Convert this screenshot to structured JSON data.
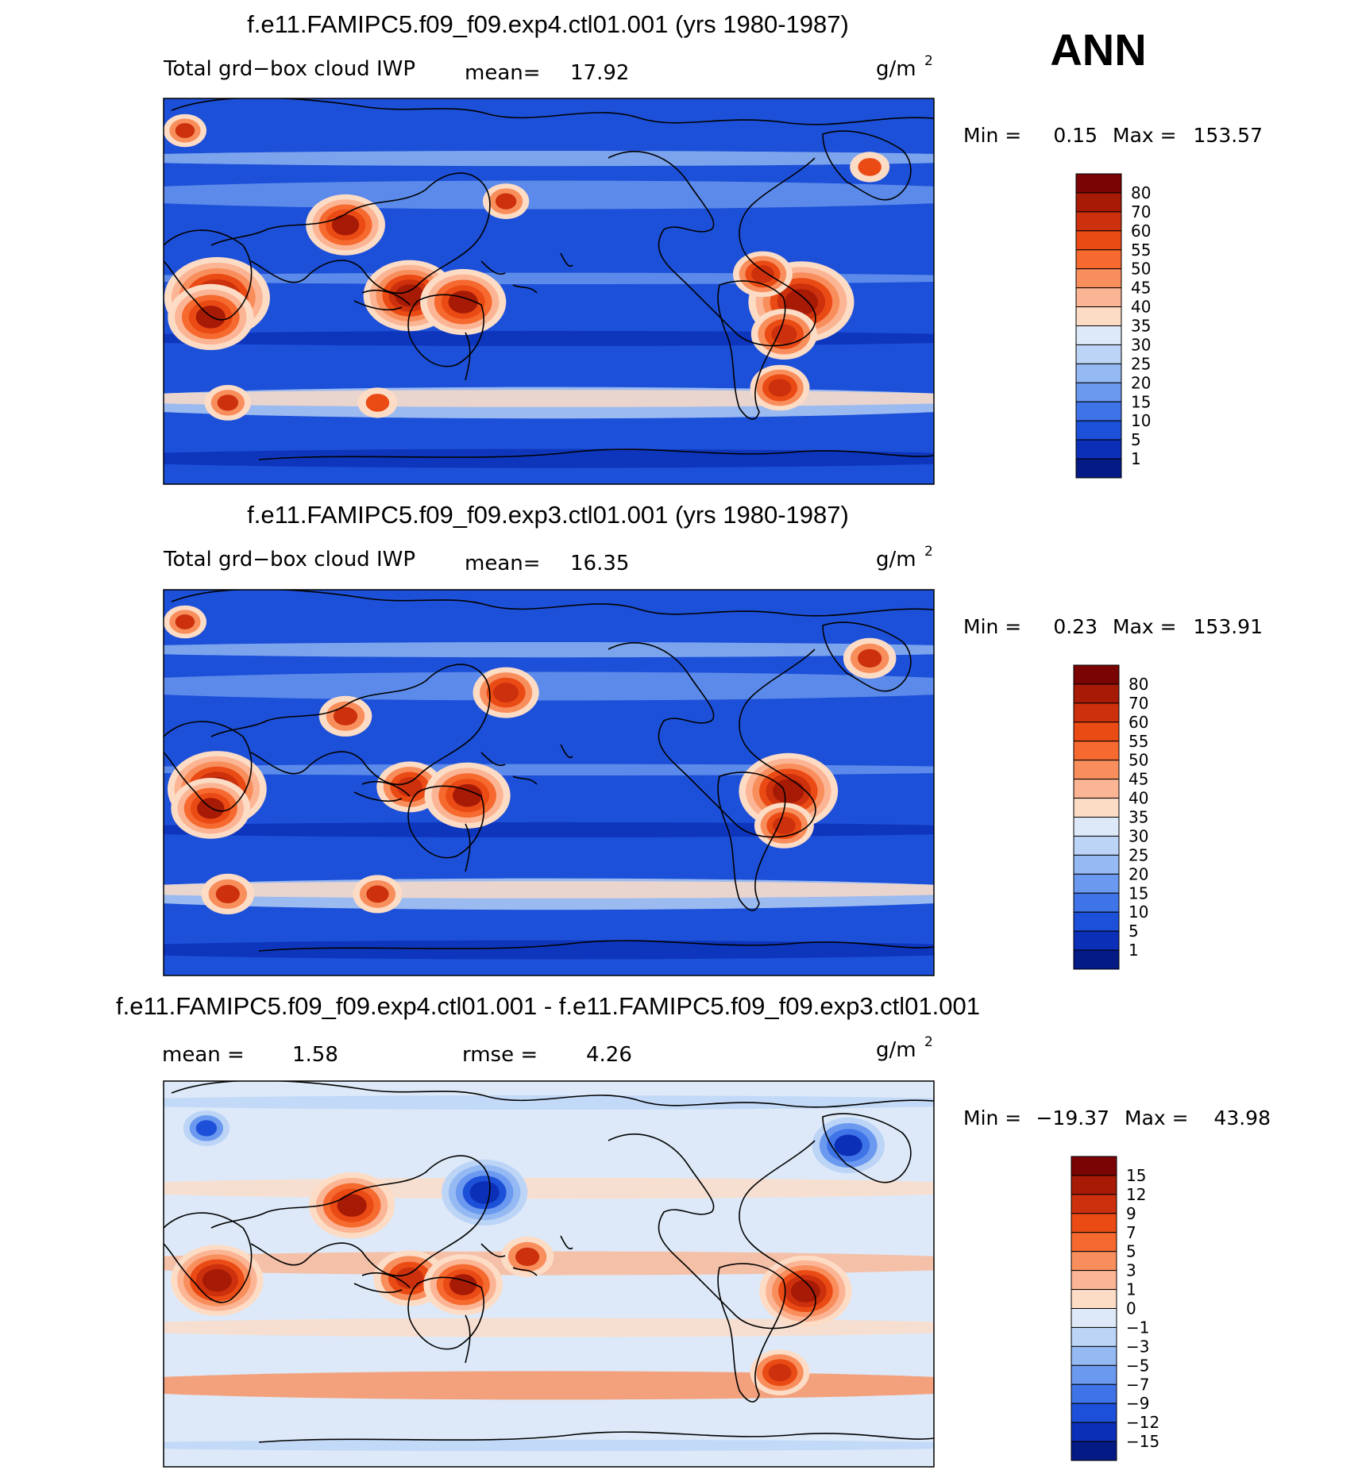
{
  "season": "ANN",
  "chart_data": [
    {
      "type": "heatmap",
      "title": "f.e11.FAMIPC5.f09_f09.exp4.ctl01.001 (yrs 1980-1987)",
      "variable": "Total grd−box cloud IWP",
      "mean_label": "mean=",
      "mean": "17.92",
      "units": "g/m",
      "units_exp": "2",
      "min_label": "Min =",
      "min": "0.15",
      "max_label": "Max =",
      "max": "153.57",
      "levels": [
        "80",
        "70",
        "60",
        "55",
        "50",
        "45",
        "40",
        "35",
        "30",
        "25",
        "20",
        "15",
        "10",
        "5",
        "1"
      ],
      "colors": [
        "#7a0403",
        "#a71a06",
        "#cc300c",
        "#ea4a14",
        "#f6692f",
        "#f98e5d",
        "#fbb594",
        "#fddcc6",
        "#dde9f8",
        "#bcd4f6",
        "#95b9f3",
        "#6b99ef",
        "#3f73e8",
        "#1d50d8",
        "#0b2fb6",
        "#041a85"
      ],
      "blobs": [
        {
          "lon": 25,
          "lat": -3,
          "r": 3.2
        },
        {
          "lon": 22,
          "lat": -12,
          "r": 2.6
        },
        {
          "lon": 85,
          "lat": 31,
          "r": 2.4
        },
        {
          "lon": 115,
          "lat": -2,
          "r": 2.8
        },
        {
          "lon": 140,
          "lat": -5,
          "r": 2.6
        },
        {
          "lon": 298,
          "lat": -5,
          "r": 3.2
        },
        {
          "lon": 290,
          "lat": -20,
          "r": 2.0
        },
        {
          "lon": 280,
          "lat": 8,
          "r": 1.8
        },
        {
          "lon": 288,
          "lat": -45,
          "r": 1.8
        },
        {
          "lon": 160,
          "lat": 42,
          "r": 1.4
        },
        {
          "lon": 30,
          "lat": -52,
          "r": 1.4
        },
        {
          "lon": 100,
          "lat": -52,
          "r": 1.2
        },
        {
          "lon": 330,
          "lat": 58,
          "r": 1.2
        },
        {
          "lon": 10,
          "lat": 75,
          "r": 1.3
        }
      ]
    },
    {
      "type": "heatmap",
      "title": "f.e11.FAMIPC5.f09_f09.exp3.ctl01.001 (yrs 1980-1987)",
      "variable": "Total grd−box cloud IWP",
      "mean_label": "mean=",
      "mean": "16.35",
      "units": "g/m",
      "units_exp": "2",
      "min_label": "Min =",
      "min": "0.23",
      "max_label": "Max =",
      "max": "153.91",
      "levels": [
        "80",
        "70",
        "60",
        "55",
        "50",
        "45",
        "40",
        "35",
        "30",
        "25",
        "20",
        "15",
        "10",
        "5",
        "1"
      ],
      "colors": [
        "#7a0403",
        "#a71a06",
        "#cc300c",
        "#ea4a14",
        "#f6692f",
        "#f98e5d",
        "#fbb594",
        "#fddcc6",
        "#dde9f8",
        "#bcd4f6",
        "#95b9f3",
        "#6b99ef",
        "#3f73e8",
        "#1d50d8",
        "#0b2fb6",
        "#041a85"
      ],
      "blobs": [
        {
          "lon": 25,
          "lat": -3,
          "r": 3.0
        },
        {
          "lon": 22,
          "lat": -12,
          "r": 2.4
        },
        {
          "lon": 85,
          "lat": 31,
          "r": 1.6
        },
        {
          "lon": 115,
          "lat": -2,
          "r": 2.0
        },
        {
          "lon": 142,
          "lat": -6,
          "r": 2.6
        },
        {
          "lon": 292,
          "lat": -4,
          "r": 3.0
        },
        {
          "lon": 290,
          "lat": -20,
          "r": 1.8
        },
        {
          "lon": 160,
          "lat": 42,
          "r": 2.0
        },
        {
          "lon": 30,
          "lat": -52,
          "r": 1.6
        },
        {
          "lon": 100,
          "lat": -52,
          "r": 1.5
        },
        {
          "lon": 330,
          "lat": 58,
          "r": 1.6
        },
        {
          "lon": 10,
          "lat": 75,
          "r": 1.3
        }
      ]
    },
    {
      "type": "heatmap",
      "title": "f.e11.FAMIPC5.f09_f09.exp4.ctl01.001 - f.e11.FAMIPC5.f09_f09.exp3.ctl01.001",
      "mean_label": "mean =",
      "mean": "1.58",
      "rmse_label": "rmse =",
      "rmse": "4.26",
      "units": "g/m",
      "units_exp": "2",
      "min_label": "Min =",
      "min": "−19.37",
      "max_label": "Max =",
      "max": "43.98",
      "levels": [
        "15",
        "12",
        "9",
        "7",
        "5",
        "3",
        "1",
        "0",
        "−1",
        "−3",
        "−5",
        "−7",
        "−9",
        "−12",
        "−15"
      ],
      "colors": [
        "#7a0403",
        "#a71a06",
        "#cc300c",
        "#ea4a14",
        "#f6692f",
        "#f98e5d",
        "#fbb594",
        "#fddcc6",
        "#dde9f8",
        "#bcd4f6",
        "#95b9f3",
        "#6b99ef",
        "#3f73e8",
        "#1d50d8",
        "#0b2fb6",
        "#041a85"
      ],
      "blobs": [
        {
          "lon": 25,
          "lat": -3,
          "r": 2.8
        },
        {
          "lon": 88,
          "lat": 32,
          "r": 2.6
        },
        {
          "lon": 115,
          "lat": -2,
          "r": 2.2
        },
        {
          "lon": 140,
          "lat": -5,
          "r": 2.4
        },
        {
          "lon": 300,
          "lat": -8,
          "r": 2.8
        },
        {
          "lon": 170,
          "lat": 8,
          "r": 1.6
        },
        {
          "lon": 150,
          "lat": 38,
          "r": -2.6
        },
        {
          "lon": 320,
          "lat": 60,
          "r": -2.2
        },
        {
          "lon": 20,
          "lat": 68,
          "r": -1.4
        },
        {
          "lon": 288,
          "lat": -46,
          "r": 1.8
        }
      ]
    }
  ]
}
